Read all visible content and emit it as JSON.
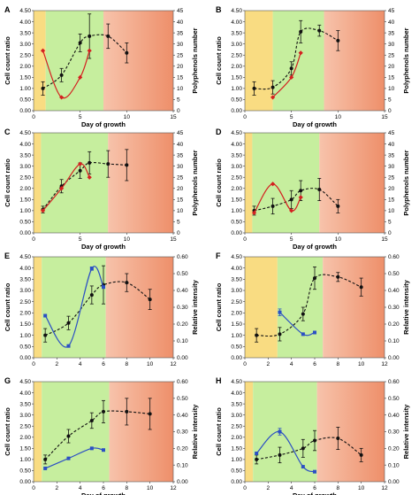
{
  "figure": {
    "colors": {
      "yellow": "#f9dc82",
      "green": "#c6ee9e",
      "orange_start": "#f7c3ab",
      "orange_end": "#ee8f6a",
      "black": "#111111",
      "red": "#d42020",
      "blue": "#2b4fc4"
    }
  },
  "chart_data": [
    {
      "id": "A",
      "type": "line",
      "panel_label": "A",
      "xlabel": "Day of growth",
      "ylabel": "Cell count ratio",
      "y2label": "Polyphenols number",
      "xlim": [
        0,
        15
      ],
      "xticks": [
        0,
        5,
        10,
        15
      ],
      "ylim": [
        0,
        4.5
      ],
      "yticks": [
        "0.00",
        "0.50",
        "1.00",
        "1.50",
        "2.00",
        "2.50",
        "3.00",
        "3.50",
        "4.00",
        "4.50"
      ],
      "y2lim": [
        0,
        45
      ],
      "y2ticks": [
        "0",
        "5",
        "10",
        "15",
        "20",
        "25",
        "30",
        "35",
        "40",
        "45"
      ],
      "phases": [
        {
          "color": "yellow",
          "x0": 0,
          "x1": 1.3
        },
        {
          "color": "green",
          "x0": 1.3,
          "x1": 7.5
        },
        {
          "color": "orange",
          "x0": 7.5,
          "x1": 15
        }
      ],
      "series": [
        {
          "axis": "left",
          "color": "black",
          "style": "dashed",
          "marker": "circle",
          "x": [
            1,
            3,
            5,
            6,
            8,
            10
          ],
          "y": [
            1.0,
            1.6,
            3.05,
            3.35,
            3.35,
            2.6
          ],
          "err": [
            0.3,
            0.3,
            0.4,
            1.0,
            0.55,
            0.45
          ]
        },
        {
          "axis": "right",
          "color": "red",
          "style": "solid",
          "marker": "diamond",
          "x": [
            1,
            3,
            5,
            6
          ],
          "y": [
            27,
            6,
            15,
            27
          ],
          "err": [
            0,
            0,
            0,
            0
          ]
        }
      ]
    },
    {
      "id": "B",
      "type": "line",
      "panel_label": "B",
      "xlabel": "Day of growth",
      "ylabel": "Cell count ratio",
      "y2label": "Polyphenols number",
      "xlim": [
        0,
        15
      ],
      "xticks": [
        0,
        5,
        10,
        15
      ],
      "ylim": [
        0,
        4.5
      ],
      "yticks": [
        "0.00",
        "0.50",
        "1.00",
        "1.50",
        "2.00",
        "2.50",
        "3.00",
        "3.50",
        "4.00",
        "4.50"
      ],
      "y2lim": [
        0,
        45
      ],
      "y2ticks": [
        "0",
        "5",
        "10",
        "15",
        "20",
        "25",
        "30",
        "35",
        "40",
        "45"
      ],
      "phases": [
        {
          "color": "yellow",
          "x0": 0,
          "x1": 3
        },
        {
          "color": "green",
          "x0": 3,
          "x1": 8.5
        },
        {
          "color": "orange",
          "x0": 8.5,
          "x1": 15
        }
      ],
      "series": [
        {
          "axis": "left",
          "color": "black",
          "style": "dashed",
          "marker": "circle",
          "x": [
            1,
            3,
            5,
            6,
            8,
            10
          ],
          "y": [
            1.0,
            1.05,
            1.9,
            3.55,
            3.6,
            3.15
          ],
          "err": [
            0.3,
            0.3,
            0.3,
            0.5,
            0.25,
            0.45
          ]
        },
        {
          "axis": "right",
          "color": "red",
          "style": "solid",
          "marker": "diamond",
          "x": [
            3,
            5,
            6
          ],
          "y": [
            6,
            15,
            26
          ],
          "err": [
            0,
            0,
            0
          ]
        }
      ]
    },
    {
      "id": "C",
      "type": "line",
      "panel_label": "C",
      "xlabel": "Day of growth",
      "ylabel": "Cell count ratio",
      "y2label": "Polyphenols number",
      "xlim": [
        0,
        15
      ],
      "xticks": [
        0,
        5,
        10,
        15
      ],
      "ylim": [
        0,
        4.5
      ],
      "yticks": [
        "0.00",
        "0.50",
        "1.00",
        "1.50",
        "2.00",
        "2.50",
        "3.00",
        "3.50",
        "4.00",
        "4.50"
      ],
      "y2lim": [
        0,
        45
      ],
      "y2ticks": [
        "0",
        "5",
        "10",
        "15",
        "20",
        "25",
        "30",
        "35",
        "40",
        "45"
      ],
      "phases": [
        {
          "color": "yellow",
          "x0": 0,
          "x1": 0.8
        },
        {
          "color": "green",
          "x0": 0.8,
          "x1": 8
        },
        {
          "color": "orange",
          "x0": 8,
          "x1": 15
        }
      ],
      "series": [
        {
          "axis": "left",
          "color": "black",
          "style": "dashed",
          "marker": "circle",
          "x": [
            1,
            3,
            5,
            6,
            8,
            10
          ],
          "y": [
            1.05,
            2.1,
            2.8,
            3.15,
            3.1,
            3.05
          ],
          "err": [
            0.15,
            0.3,
            0.35,
            0.5,
            0.6,
            0.7
          ]
        },
        {
          "axis": "right",
          "color": "red",
          "style": "solid",
          "marker": "diamond",
          "x": [
            1,
            3,
            5,
            6
          ],
          "y": [
            10,
            20,
            31,
            25
          ],
          "err": [
            0,
            0,
            0,
            0
          ]
        }
      ]
    },
    {
      "id": "D",
      "type": "line",
      "panel_label": "D",
      "xlabel": "Day of growth",
      "ylabel": "Cell count ratio",
      "y2label": "Polyphenols number",
      "xlim": [
        0,
        15
      ],
      "xticks": [
        0,
        5,
        10,
        15
      ],
      "ylim": [
        0,
        4.5
      ],
      "yticks": [
        "0.00",
        "0.50",
        "1.00",
        "1.50",
        "2.00",
        "2.50",
        "3.00",
        "3.50",
        "4.00",
        "4.50"
      ],
      "y2lim": [
        0,
        45
      ],
      "y2ticks": [
        "0",
        "5",
        "10",
        "15",
        "20",
        "25",
        "30",
        "35",
        "40",
        "45"
      ],
      "phases": [
        {
          "color": "yellow",
          "x0": 0,
          "x1": 0.8
        },
        {
          "color": "green",
          "x0": 0.8,
          "x1": 8
        },
        {
          "color": "orange",
          "x0": 8,
          "x1": 15
        }
      ],
      "series": [
        {
          "axis": "left",
          "color": "black",
          "style": "dashed",
          "marker": "circle",
          "x": [
            1,
            3,
            5,
            6,
            8,
            10
          ],
          "y": [
            1.0,
            1.2,
            1.5,
            1.9,
            1.95,
            1.2
          ],
          "err": [
            0.2,
            0.35,
            0.4,
            0.45,
            0.5,
            0.3
          ]
        },
        {
          "axis": "right",
          "color": "red",
          "style": "solid",
          "marker": "diamond",
          "x": [
            1,
            3,
            5,
            6
          ],
          "y": [
            9,
            22,
            10,
            16
          ],
          "err": [
            0,
            0,
            0,
            0
          ]
        }
      ]
    },
    {
      "id": "E",
      "type": "line",
      "panel_label": "E",
      "xlabel": "",
      "ylabel": "Cell count ratio",
      "y2label": "Relative intensity",
      "xlim": [
        0,
        12
      ],
      "xticks": [
        0,
        2,
        4,
        6,
        8,
        10,
        12
      ],
      "ylim": [
        0,
        4.5
      ],
      "yticks": [
        "0.00",
        "0.50",
        "1.00",
        "1.50",
        "2.00",
        "2.50",
        "3.00",
        "3.50",
        "4.00",
        "4.50"
      ],
      "y2lim": [
        0,
        0.6
      ],
      "y2ticks": [
        "0.00",
        "0.10",
        "0.20",
        "0.30",
        "0.40",
        "0.50",
        "0.60"
      ],
      "phases": [
        {
          "color": "yellow",
          "x0": 0,
          "x1": 0.7
        },
        {
          "color": "green",
          "x0": 0.7,
          "x1": 6.2
        },
        {
          "color": "orange",
          "x0": 6.2,
          "x1": 12
        }
      ],
      "series": [
        {
          "axis": "left",
          "color": "black",
          "style": "dashed",
          "marker": "circle",
          "x": [
            1,
            3,
            5,
            6,
            8,
            10
          ],
          "y": [
            1.0,
            1.55,
            2.8,
            3.25,
            3.35,
            2.6
          ],
          "err": [
            0.3,
            0.3,
            0.4,
            0.85,
            0.4,
            0.45
          ]
        },
        {
          "axis": "right",
          "color": "blue",
          "style": "solid",
          "marker": "square",
          "x": [
            1,
            3,
            5,
            6
          ],
          "y": [
            0.25,
            0.07,
            0.53,
            0.42
          ],
          "err": [
            0,
            0,
            0.01,
            0
          ]
        }
      ]
    },
    {
      "id": "F",
      "type": "line",
      "panel_label": "F",
      "xlabel": "",
      "ylabel": "Cell count ratio",
      "y2label": "Relative intensity",
      "xlim": [
        0,
        12
      ],
      "xticks": [
        0,
        2,
        4,
        6,
        8,
        10,
        12
      ],
      "ylim": [
        0,
        4.5
      ],
      "yticks": [
        "0.00",
        "0.50",
        "1.00",
        "1.50",
        "2.00",
        "2.50",
        "3.00",
        "3.50",
        "4.00",
        "4.50"
      ],
      "y2lim": [
        0,
        0.6
      ],
      "y2ticks": [
        "0.00",
        "0.10",
        "0.20",
        "0.30",
        "0.40",
        "0.50",
        "0.60"
      ],
      "phases": [
        {
          "color": "yellow",
          "x0": 0,
          "x1": 2.8
        },
        {
          "color": "green",
          "x0": 2.8,
          "x1": 6.7
        },
        {
          "color": "orange",
          "x0": 6.7,
          "x1": 12
        }
      ],
      "series": [
        {
          "axis": "left",
          "color": "black",
          "style": "dashed",
          "marker": "circle",
          "x": [
            1,
            3,
            5,
            6,
            8,
            10
          ],
          "y": [
            1.0,
            1.05,
            1.95,
            3.55,
            3.6,
            3.15
          ],
          "err": [
            0.3,
            0.3,
            0.3,
            0.5,
            0.2,
            0.4
          ]
        },
        {
          "axis": "right",
          "color": "blue",
          "style": "solid",
          "marker": "square",
          "x": [
            3,
            5,
            6
          ],
          "y": [
            0.27,
            0.14,
            0.15
          ],
          "err": [
            0.02,
            0,
            0
          ]
        }
      ]
    },
    {
      "id": "G",
      "type": "line",
      "panel_label": "G",
      "xlabel": "Day of growth",
      "ylabel": "Cell count ratio",
      "y2label": "Relative intensity",
      "xlim": [
        0,
        12
      ],
      "xticks": [
        0,
        2,
        4,
        6,
        8,
        10,
        12
      ],
      "ylim": [
        0,
        4.5
      ],
      "yticks": [
        "0.00",
        "0.50",
        "1.00",
        "1.50",
        "2.00",
        "2.50",
        "3.00",
        "3.50",
        "4.00",
        "4.50"
      ],
      "y2lim": [
        0,
        0.6
      ],
      "y2ticks": [
        "0.00",
        "0.10",
        "0.20",
        "0.30",
        "0.40",
        "0.50",
        "0.60"
      ],
      "phases": [
        {
          "color": "yellow",
          "x0": 0,
          "x1": 0.7
        },
        {
          "color": "green",
          "x0": 0.7,
          "x1": 6.5
        },
        {
          "color": "orange",
          "x0": 6.5,
          "x1": 12
        }
      ],
      "series": [
        {
          "axis": "left",
          "color": "black",
          "style": "dashed",
          "marker": "circle",
          "x": [
            1,
            3,
            5,
            6,
            8,
            10
          ],
          "y": [
            1.0,
            2.05,
            2.75,
            3.15,
            3.15,
            3.05
          ],
          "err": [
            0.2,
            0.3,
            0.35,
            0.5,
            0.6,
            0.7
          ]
        },
        {
          "axis": "right",
          "color": "blue",
          "style": "solid",
          "marker": "square",
          "x": [
            1,
            3,
            5,
            6
          ],
          "y": [
            0.08,
            0.14,
            0.2,
            0.19
          ],
          "err": [
            0,
            0,
            0,
            0
          ]
        }
      ]
    },
    {
      "id": "H",
      "type": "line",
      "panel_label": "H",
      "xlabel": "Day of growth",
      "ylabel": "Cell count ratio",
      "y2label": "Relative intensity",
      "xlim": [
        0,
        12
      ],
      "xticks": [
        0,
        2,
        4,
        6,
        8,
        10,
        12
      ],
      "ylim": [
        0,
        4.5
      ],
      "yticks": [
        "0.00",
        "0.50",
        "1.00",
        "1.50",
        "2.00",
        "2.50",
        "3.00",
        "3.50",
        "4.00",
        "4.50"
      ],
      "y2lim": [
        0,
        0.6
      ],
      "y2ticks": [
        "0.00",
        "0.10",
        "0.20",
        "0.30",
        "0.40",
        "0.50",
        "0.60"
      ],
      "phases": [
        {
          "color": "yellow",
          "x0": 0,
          "x1": 0.7
        },
        {
          "color": "green",
          "x0": 0.7,
          "x1": 6.2
        },
        {
          "color": "orange",
          "x0": 6.2,
          "x1": 12
        }
      ],
      "series": [
        {
          "axis": "left",
          "color": "black",
          "style": "dashed",
          "marker": "circle",
          "x": [
            1,
            3,
            5,
            6,
            8,
            10
          ],
          "y": [
            1.0,
            1.2,
            1.5,
            1.85,
            1.95,
            1.2
          ],
          "err": [
            0.2,
            0.35,
            0.4,
            0.45,
            0.5,
            0.3
          ]
        },
        {
          "axis": "right",
          "color": "blue",
          "style": "solid",
          "marker": "square",
          "x": [
            1,
            3,
            5,
            6
          ],
          "y": [
            0.17,
            0.3,
            0.09,
            0.06
          ],
          "err": [
            0,
            0.02,
            0,
            0
          ]
        }
      ]
    }
  ]
}
